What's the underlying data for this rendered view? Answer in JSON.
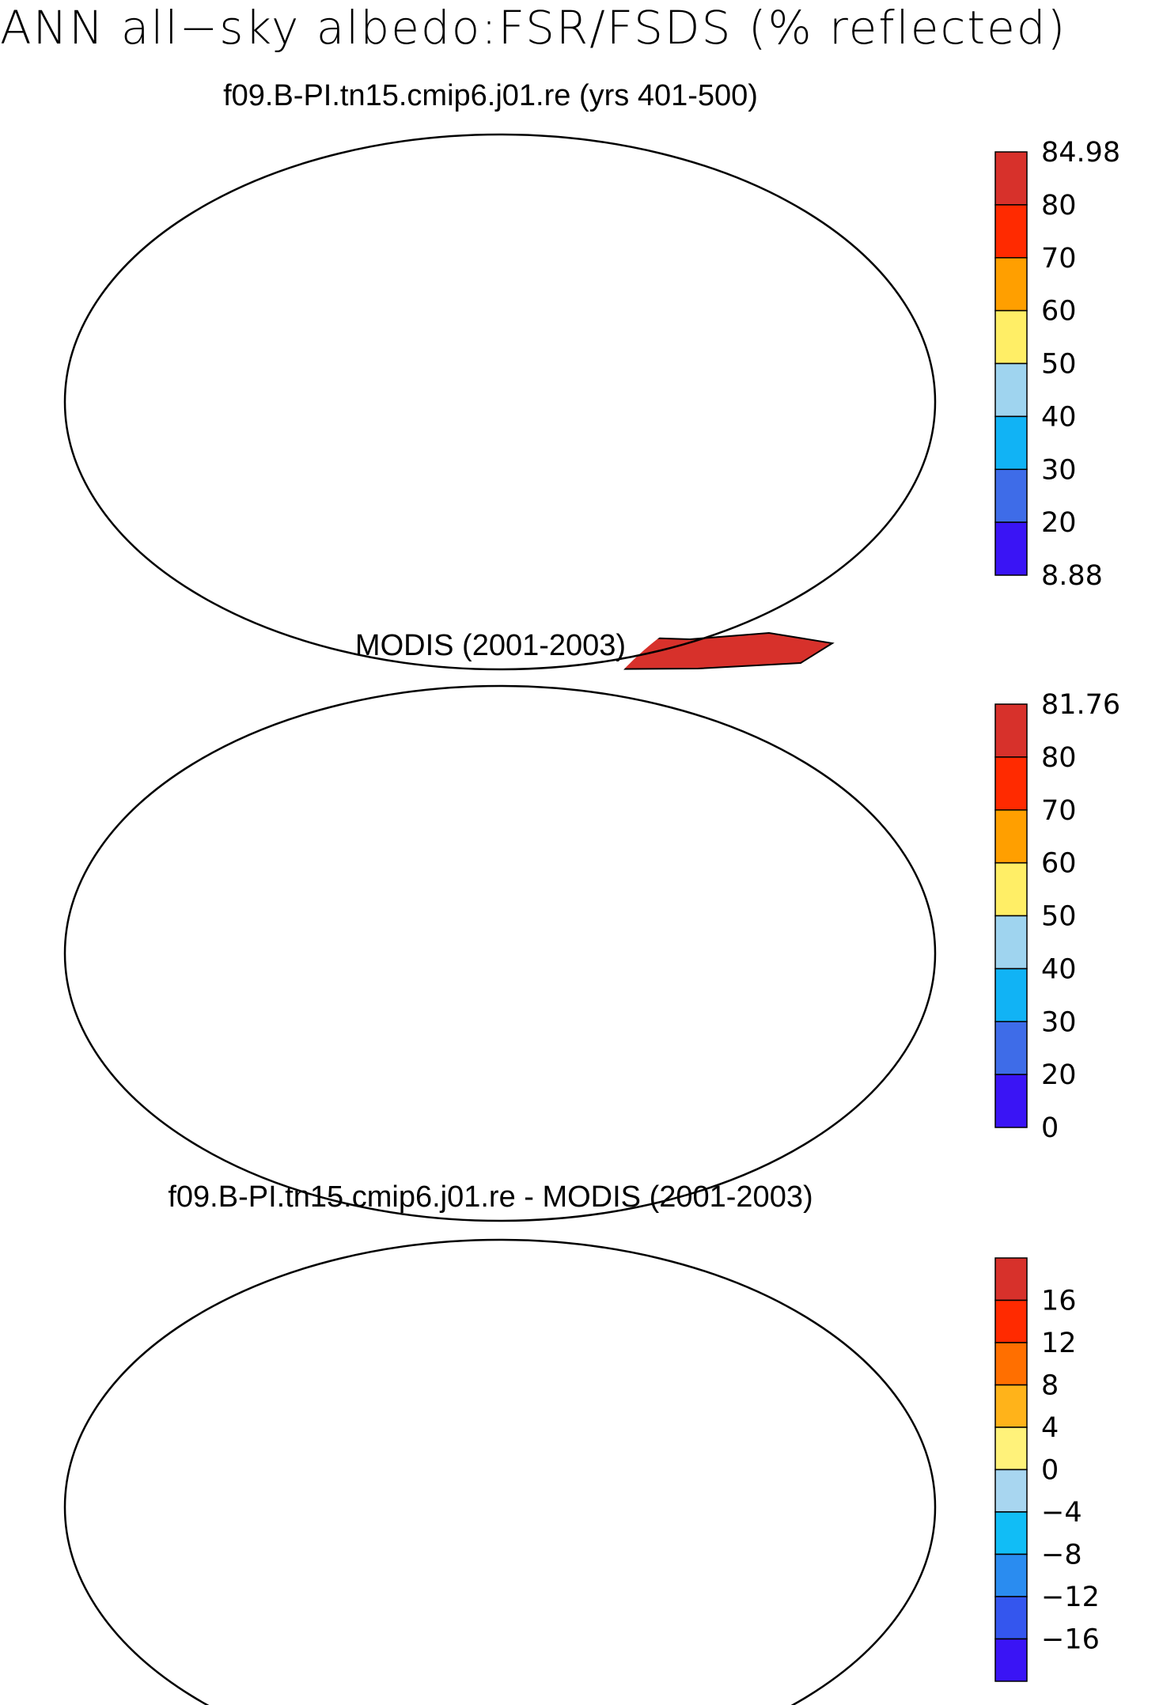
{
  "title": "ANN all−sky albedo:FSR/FSDS (% reflected)",
  "panels": [
    {
      "title": "f09.B-PI.tn15.cmip6.j01.re (yrs 401-500)",
      "colorbar": {
        "labels": [
          "84.98",
          "80",
          "70",
          "60",
          "50",
          "40",
          "30",
          "20",
          "8.88"
        ],
        "colors": [
          "#d7312b",
          "#ff2a00",
          "#ff9f00",
          "#ffee66",
          "#9fd4ef",
          "#11b3f5",
          "#3e6ce8",
          "#3a14f5"
        ]
      }
    },
    {
      "title": "MODIS (2001-2003)",
      "colorbar": {
        "labels": [
          "81.76",
          "80",
          "70",
          "60",
          "50",
          "40",
          "30",
          "20",
          "0"
        ],
        "colors": [
          "#d7312b",
          "#ff2a00",
          "#ff9f00",
          "#ffee66",
          "#9fd4ef",
          "#11b3f5",
          "#3e6ce8",
          "#3a14f5"
        ]
      }
    },
    {
      "title": "f09.B-PI.tn15.cmip6.j01.re - MODIS (2001-2003)",
      "colorbar": {
        "labels": [
          "16",
          "12",
          "8",
          "4",
          "0",
          "−4",
          "−8",
          "−12",
          "−16"
        ],
        "colors": [
          "#d7312b",
          "#ff2a00",
          "#ff6f00",
          "#ffb31a",
          "#fff27a",
          "#a8d6f0",
          "#11bdf6",
          "#2a8cf0",
          "#3456ee",
          "#3a14f5"
        ]
      }
    }
  ]
}
